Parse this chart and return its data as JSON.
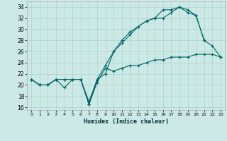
{
  "xlabel": "Humidex (Indice chaleur)",
  "xlim": [
    -0.5,
    23.5
  ],
  "ylim": [
    15.5,
    35.0
  ],
  "yticks": [
    16,
    18,
    20,
    22,
    24,
    26,
    28,
    30,
    32,
    34
  ],
  "xticks": [
    0,
    1,
    2,
    3,
    4,
    5,
    6,
    7,
    8,
    9,
    10,
    11,
    12,
    13,
    14,
    15,
    16,
    17,
    18,
    19,
    20,
    21,
    22,
    23
  ],
  "bg_color": "#cce9e5",
  "grid_color": "#aad4ce",
  "line_color": "#006666",
  "line1_x": [
    0,
    1,
    2,
    3,
    4,
    5,
    6,
    7,
    8,
    9,
    10,
    11,
    12,
    13,
    14,
    15,
    16,
    17,
    18,
    19,
    20,
    21
  ],
  "line1_y": [
    21,
    20,
    20,
    21,
    21,
    21,
    21,
    16.5,
    21,
    23.5,
    26,
    27.5,
    29,
    30.5,
    31.5,
    32,
    33.5,
    33.5,
    34,
    33.5,
    32.5,
    28
  ],
  "line2_x": [
    0,
    1,
    2,
    3,
    4,
    5,
    6,
    7,
    8,
    9,
    10,
    11,
    12,
    13,
    14,
    15,
    16,
    17,
    18,
    19,
    20,
    21,
    22,
    23
  ],
  "line2_y": [
    21,
    20,
    20,
    21,
    21,
    21,
    21,
    17,
    21,
    22,
    26,
    28,
    29.5,
    30.5,
    31.5,
    32,
    32,
    33,
    34,
    33,
    32.5,
    28,
    27,
    25
  ],
  "line3_x": [
    0,
    1,
    2,
    3,
    4,
    5,
    6,
    7,
    8,
    9,
    10,
    11,
    12,
    13,
    14,
    15,
    16,
    17,
    18,
    19,
    20,
    21,
    22,
    23
  ],
  "line3_y": [
    21,
    20,
    20,
    21,
    19.5,
    21,
    21,
    16.5,
    20.5,
    23,
    22.5,
    23,
    23.5,
    23.5,
    24,
    24.5,
    24.5,
    25,
    25,
    25,
    25.5,
    25.5,
    25.5,
    25
  ]
}
